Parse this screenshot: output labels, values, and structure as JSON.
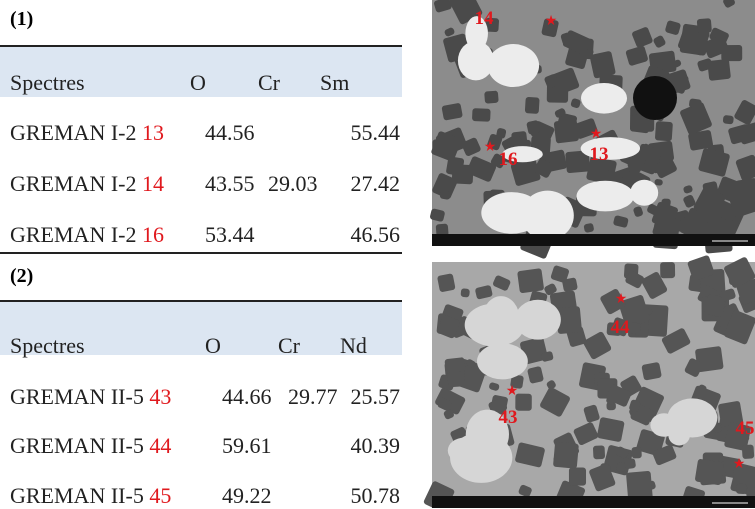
{
  "panels": [
    {
      "label": "(1)",
      "table": {
        "header": [
          "Spectres",
          "O",
          "Cr",
          "Sm"
        ],
        "rows": [
          {
            "name": "GREMAN I-2",
            "id": "13",
            "values": [
              44.56,
              null,
              55.44
            ]
          },
          {
            "name": "GREMAN I-2",
            "id": "14",
            "values": [
              43.55,
              29.03,
              27.42
            ]
          },
          {
            "name": "GREMAN I-2",
            "id": "16",
            "values": [
              53.44,
              null,
              46.56
            ]
          }
        ]
      },
      "image": {
        "markers": [
          "14",
          "16",
          "13"
        ]
      }
    },
    {
      "label": "(2)",
      "table": {
        "header": [
          "Spectres",
          "O",
          "Cr",
          "Nd"
        ],
        "rows": [
          {
            "name": "GREMAN II-5",
            "id": "43",
            "values": [
              44.66,
              29.77,
              25.57
            ]
          },
          {
            "name": "GREMAN II-5",
            "id": "44",
            "values": [
              59.61,
              null,
              40.39
            ]
          },
          {
            "name": "GREMAN II-5",
            "id": "45",
            "values": [
              49.22,
              null,
              50.78
            ]
          }
        ]
      },
      "image": {
        "markers": [
          "44",
          "43",
          "45"
        ]
      }
    }
  ]
}
